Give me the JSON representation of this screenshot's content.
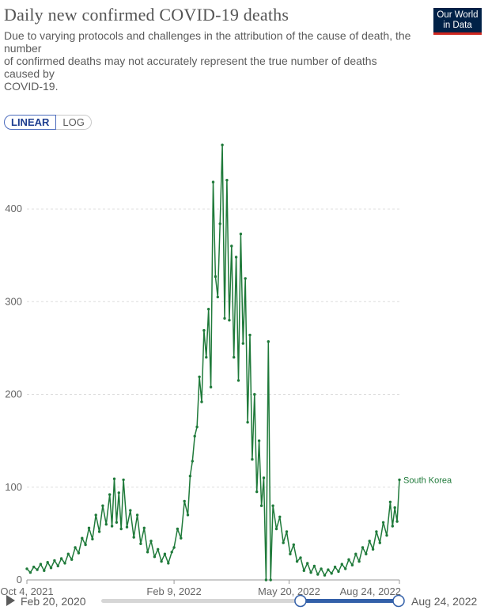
{
  "header": {
    "title": "Daily new confirmed COVID-19 deaths",
    "subtitle_lines": [
      "Due to varying protocols and challenges in the attribution of the cause of death, the",
      "number",
      "of confirmed deaths may not accurately represent the true number of deaths",
      "caused by",
      "COVID-19."
    ],
    "logo_line1": "Our World",
    "logo_line2": "in Data"
  },
  "colors": {
    "series": "#1f7a3a",
    "logo_bg": "#002147",
    "logo_accent": "#ce261e",
    "timeline_active": "#3360a9"
  },
  "scale_toggle": {
    "linear_label": "LINEAR",
    "log_label": "LOG",
    "selected": "LINEAR"
  },
  "timeline": {
    "start_label": "Feb 20, 2020",
    "end_label": "Aug 24, 2022",
    "play_icon": "play-icon",
    "selection_start_fraction": 0.67,
    "selection_end_fraction": 1.0
  },
  "chart_data": {
    "type": "line",
    "title": "Daily new confirmed COVID-19 deaths",
    "xlabel": "",
    "ylabel": "",
    "x_start": "2021-10-04",
    "x_end": "2022-08-24",
    "x_ticks": [
      "Oct 4, 2021",
      "Feb 9, 2022",
      "May 20, 2022",
      "Aug 24, 2022"
    ],
    "x_tick_dates": [
      "2021-10-04",
      "2022-02-09",
      "2022-05-20",
      "2022-08-24"
    ],
    "ylim": [
      0,
      470
    ],
    "y_ticks": [
      0,
      100,
      200,
      300,
      400
    ],
    "grid": "horizontal dashed",
    "legend": "label at line end",
    "series": [
      {
        "name": "South Korea",
        "points": [
          [
            "2021-10-04",
            12
          ],
          [
            "2021-10-07",
            8
          ],
          [
            "2021-10-10",
            14
          ],
          [
            "2021-10-13",
            11
          ],
          [
            "2021-10-16",
            17
          ],
          [
            "2021-10-19",
            10
          ],
          [
            "2021-10-22",
            19
          ],
          [
            "2021-10-25",
            13
          ],
          [
            "2021-10-28",
            21
          ],
          [
            "2021-10-31",
            15
          ],
          [
            "2021-11-03",
            23
          ],
          [
            "2021-11-06",
            18
          ],
          [
            "2021-11-09",
            28
          ],
          [
            "2021-11-12",
            22
          ],
          [
            "2021-11-15",
            35
          ],
          [
            "2021-11-18",
            29
          ],
          [
            "2021-11-21",
            45
          ],
          [
            "2021-11-24",
            38
          ],
          [
            "2021-11-27",
            56
          ],
          [
            "2021-11-30",
            44
          ],
          [
            "2021-12-03",
            70
          ],
          [
            "2021-12-06",
            52
          ],
          [
            "2021-12-09",
            80
          ],
          [
            "2021-12-12",
            60
          ],
          [
            "2021-12-15",
            92
          ],
          [
            "2021-12-17",
            58
          ],
          [
            "2021-12-19",
            109
          ],
          [
            "2021-12-21",
            62
          ],
          [
            "2021-12-23",
            94
          ],
          [
            "2021-12-25",
            55
          ],
          [
            "2021-12-27",
            108
          ],
          [
            "2021-12-30",
            57
          ],
          [
            "2022-01-02",
            75
          ],
          [
            "2022-01-05",
            46
          ],
          [
            "2022-01-08",
            70
          ],
          [
            "2022-01-11",
            39
          ],
          [
            "2022-01-14",
            56
          ],
          [
            "2022-01-17",
            30
          ],
          [
            "2022-01-20",
            42
          ],
          [
            "2022-01-23",
            25
          ],
          [
            "2022-01-26",
            33
          ],
          [
            "2022-01-29",
            20
          ],
          [
            "2022-02-01",
            28
          ],
          [
            "2022-02-04",
            18
          ],
          [
            "2022-02-07",
            30
          ],
          [
            "2022-02-09",
            35
          ],
          [
            "2022-02-12",
            55
          ],
          [
            "2022-02-15",
            45
          ],
          [
            "2022-02-18",
            85
          ],
          [
            "2022-02-21",
            70
          ],
          [
            "2022-02-23",
            112
          ],
          [
            "2022-02-25",
            128
          ],
          [
            "2022-02-27",
            155
          ],
          [
            "2022-03-01",
            165
          ],
          [
            "2022-03-03",
            219
          ],
          [
            "2022-03-05",
            192
          ],
          [
            "2022-03-07",
            269
          ],
          [
            "2022-03-09",
            240
          ],
          [
            "2022-03-11",
            292
          ],
          [
            "2022-03-13",
            208
          ],
          [
            "2022-03-15",
            429
          ],
          [
            "2022-03-17",
            327
          ],
          [
            "2022-03-19",
            305
          ],
          [
            "2022-03-21",
            384
          ],
          [
            "2022-03-23",
            469
          ],
          [
            "2022-03-25",
            282
          ],
          [
            "2022-03-27",
            431
          ],
          [
            "2022-03-29",
            280
          ],
          [
            "2022-03-31",
            360
          ],
          [
            "2022-04-02",
            240
          ],
          [
            "2022-04-04",
            348
          ],
          [
            "2022-04-06",
            215
          ],
          [
            "2022-04-08",
            373
          ],
          [
            "2022-04-10",
            255
          ],
          [
            "2022-04-12",
            325
          ],
          [
            "2022-04-14",
            170
          ],
          [
            "2022-04-16",
            264
          ],
          [
            "2022-04-18",
            130
          ],
          [
            "2022-04-20",
            200
          ],
          [
            "2022-04-22",
            95
          ],
          [
            "2022-04-24",
            150
          ],
          [
            "2022-04-26",
            80
          ],
          [
            "2022-04-28",
            110
          ],
          [
            "2022-04-30",
            0
          ],
          [
            "2022-05-02",
            257
          ],
          [
            "2022-05-04",
            0
          ],
          [
            "2022-05-06",
            80
          ],
          [
            "2022-05-09",
            55
          ],
          [
            "2022-05-12",
            68
          ],
          [
            "2022-05-15",
            40
          ],
          [
            "2022-05-18",
            52
          ],
          [
            "2022-05-21",
            28
          ],
          [
            "2022-05-24",
            38
          ],
          [
            "2022-05-27",
            20
          ],
          [
            "2022-05-30",
            24
          ],
          [
            "2022-06-02",
            10
          ],
          [
            "2022-06-05",
            18
          ],
          [
            "2022-06-08",
            8
          ],
          [
            "2022-06-11",
            15
          ],
          [
            "2022-06-14",
            6
          ],
          [
            "2022-06-17",
            12
          ],
          [
            "2022-06-20",
            5
          ],
          [
            "2022-06-23",
            11
          ],
          [
            "2022-06-26",
            7
          ],
          [
            "2022-06-29",
            14
          ],
          [
            "2022-07-02",
            9
          ],
          [
            "2022-07-05",
            17
          ],
          [
            "2022-07-08",
            12
          ],
          [
            "2022-07-11",
            22
          ],
          [
            "2022-07-14",
            16
          ],
          [
            "2022-07-17",
            28
          ],
          [
            "2022-07-20",
            20
          ],
          [
            "2022-07-23",
            35
          ],
          [
            "2022-07-26",
            28
          ],
          [
            "2022-07-29",
            42
          ],
          [
            "2022-08-01",
            33
          ],
          [
            "2022-08-04",
            52
          ],
          [
            "2022-08-07",
            40
          ],
          [
            "2022-08-10",
            62
          ],
          [
            "2022-08-13",
            48
          ],
          [
            "2022-08-16",
            84
          ],
          [
            "2022-08-18",
            58
          ],
          [
            "2022-08-20",
            78
          ],
          [
            "2022-08-22",
            63
          ],
          [
            "2022-08-24",
            108
          ]
        ]
      }
    ]
  }
}
